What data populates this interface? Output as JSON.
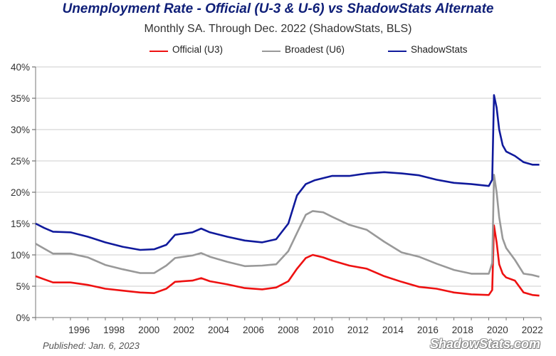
{
  "header": {
    "title": "Unemployment Rate - Official (U-3 & U-6) vs ShadowStats Alternate",
    "subtitle": "Monthly SA. Through Dec. 2022 (ShadowStats, BLS)"
  },
  "legend": {
    "items": [
      {
        "label": "Official (U3)",
        "color": "#ee1111"
      },
      {
        "label": "Broadest (U6)",
        "color": "#999999"
      },
      {
        "label": "ShadowStats",
        "color": "#101a9c"
      }
    ]
  },
  "footer": {
    "published": "Published: Jan. 6, 2023",
    "brand": "ShadowStats.com"
  },
  "chart_data": {
    "type": "line",
    "title": "Unemployment Rate - Official (U-3 & U-6) vs ShadowStats Alternate",
    "subtitle": "Monthly SA. Through Dec. 2022 (ShadowStats, BLS)",
    "xlabel": "",
    "ylabel": "",
    "xlim": [
      1994.0,
      2023.0
    ],
    "ylim": [
      0,
      40
    ],
    "yticks": [
      "0%",
      "5%",
      "10%",
      "15%",
      "20%",
      "25%",
      "30%",
      "35%",
      "40%"
    ],
    "xticks": [
      "1996",
      "1998",
      "2000",
      "2002",
      "2004",
      "2006",
      "2008",
      "2010",
      "2012",
      "2014",
      "2016",
      "2018",
      "2020",
      "2022"
    ],
    "grid": "horizontal",
    "legend_position": "top",
    "series": [
      {
        "name": "Official (U3)",
        "color": "#ee1111",
        "points": [
          [
            1994.0,
            6.6
          ],
          [
            1994.5,
            6.1
          ],
          [
            1995.0,
            5.6
          ],
          [
            1996.0,
            5.6
          ],
          [
            1997.0,
            5.2
          ],
          [
            1998.0,
            4.6
          ],
          [
            1999.0,
            4.3
          ],
          [
            2000.0,
            4.0
          ],
          [
            2000.8,
            3.9
          ],
          [
            2001.5,
            4.6
          ],
          [
            2002.0,
            5.7
          ],
          [
            2003.0,
            5.9
          ],
          [
            2003.5,
            6.3
          ],
          [
            2004.0,
            5.8
          ],
          [
            2005.0,
            5.3
          ],
          [
            2006.0,
            4.7
          ],
          [
            2007.0,
            4.5
          ],
          [
            2007.8,
            4.8
          ],
          [
            2008.5,
            5.8
          ],
          [
            2009.0,
            7.8
          ],
          [
            2009.5,
            9.5
          ],
          [
            2009.9,
            10.0
          ],
          [
            2010.5,
            9.6
          ],
          [
            2011.0,
            9.1
          ],
          [
            2012.0,
            8.3
          ],
          [
            2013.0,
            7.8
          ],
          [
            2014.0,
            6.6
          ],
          [
            2015.0,
            5.7
          ],
          [
            2016.0,
            4.9
          ],
          [
            2017.0,
            4.6
          ],
          [
            2018.0,
            4.0
          ],
          [
            2019.0,
            3.7
          ],
          [
            2020.0,
            3.6
          ],
          [
            2020.2,
            4.4
          ],
          [
            2020.3,
            14.7
          ],
          [
            2020.45,
            12.0
          ],
          [
            2020.6,
            8.5
          ],
          [
            2020.8,
            7.0
          ],
          [
            2021.0,
            6.4
          ],
          [
            2021.5,
            5.9
          ],
          [
            2022.0,
            4.0
          ],
          [
            2022.5,
            3.6
          ],
          [
            2022.9,
            3.5
          ]
        ]
      },
      {
        "name": "Broadest (U6)",
        "color": "#999999",
        "points": [
          [
            1994.0,
            11.8
          ],
          [
            1994.5,
            11.0
          ],
          [
            1995.0,
            10.2
          ],
          [
            1996.0,
            10.2
          ],
          [
            1997.0,
            9.6
          ],
          [
            1998.0,
            8.4
          ],
          [
            1999.0,
            7.7
          ],
          [
            2000.0,
            7.1
          ],
          [
            2000.8,
            7.1
          ],
          [
            2001.5,
            8.3
          ],
          [
            2002.0,
            9.5
          ],
          [
            2003.0,
            9.9
          ],
          [
            2003.5,
            10.3
          ],
          [
            2004.0,
            9.7
          ],
          [
            2005.0,
            8.9
          ],
          [
            2006.0,
            8.2
          ],
          [
            2007.0,
            8.3
          ],
          [
            2007.8,
            8.5
          ],
          [
            2008.5,
            10.6
          ],
          [
            2009.0,
            13.5
          ],
          [
            2009.5,
            16.4
          ],
          [
            2009.9,
            17.0
          ],
          [
            2010.5,
            16.8
          ],
          [
            2011.0,
            16.1
          ],
          [
            2012.0,
            14.8
          ],
          [
            2013.0,
            14.0
          ],
          [
            2014.0,
            12.1
          ],
          [
            2015.0,
            10.4
          ],
          [
            2016.0,
            9.7
          ],
          [
            2017.0,
            8.6
          ],
          [
            2018.0,
            7.6
          ],
          [
            2019.0,
            7.0
          ],
          [
            2020.0,
            7.0
          ],
          [
            2020.2,
            8.7
          ],
          [
            2020.3,
            22.8
          ],
          [
            2020.45,
            20.0
          ],
          [
            2020.6,
            16.0
          ],
          [
            2020.8,
            12.6
          ],
          [
            2021.0,
            11.1
          ],
          [
            2021.5,
            9.2
          ],
          [
            2022.0,
            7.0
          ],
          [
            2022.5,
            6.8
          ],
          [
            2022.9,
            6.5
          ]
        ]
      },
      {
        "name": "ShadowStats",
        "color": "#101a9c",
        "points": [
          [
            1994.0,
            15.0
          ],
          [
            1994.5,
            14.3
          ],
          [
            1995.0,
            13.7
          ],
          [
            1996.0,
            13.6
          ],
          [
            1997.0,
            12.9
          ],
          [
            1998.0,
            12.0
          ],
          [
            1999.0,
            11.3
          ],
          [
            2000.0,
            10.8
          ],
          [
            2000.8,
            10.9
          ],
          [
            2001.5,
            11.6
          ],
          [
            2002.0,
            13.2
          ],
          [
            2003.0,
            13.6
          ],
          [
            2003.5,
            14.2
          ],
          [
            2004.0,
            13.6
          ],
          [
            2005.0,
            12.9
          ],
          [
            2006.0,
            12.3
          ],
          [
            2007.0,
            12.0
          ],
          [
            2007.8,
            12.5
          ],
          [
            2008.5,
            15.0
          ],
          [
            2009.0,
            19.5
          ],
          [
            2009.5,
            21.3
          ],
          [
            2010.0,
            21.9
          ],
          [
            2011.0,
            22.6
          ],
          [
            2012.0,
            22.6
          ],
          [
            2013.0,
            23.0
          ],
          [
            2014.0,
            23.2
          ],
          [
            2015.0,
            23.0
          ],
          [
            2016.0,
            22.7
          ],
          [
            2017.0,
            22.0
          ],
          [
            2018.0,
            21.5
          ],
          [
            2019.0,
            21.3
          ],
          [
            2020.0,
            21.0
          ],
          [
            2020.2,
            22.0
          ],
          [
            2020.3,
            35.5
          ],
          [
            2020.45,
            33.5
          ],
          [
            2020.6,
            30.0
          ],
          [
            2020.8,
            27.5
          ],
          [
            2021.0,
            26.5
          ],
          [
            2021.5,
            25.8
          ],
          [
            2022.0,
            24.8
          ],
          [
            2022.5,
            24.4
          ],
          [
            2022.9,
            24.4
          ]
        ]
      }
    ]
  }
}
